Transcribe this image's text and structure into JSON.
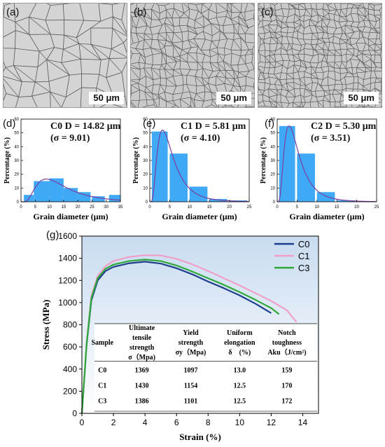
{
  "panels": {
    "micrographs": [
      {
        "label": "(a)",
        "scale": "50 μm"
      },
      {
        "label": "(b)",
        "scale": "50 μm"
      },
      {
        "label": "(c)",
        "scale": "50 μm"
      }
    ]
  },
  "chart_data": [
    {
      "type": "bar",
      "panel": "(d)",
      "title_line1": "C0 D = 14.82 μm",
      "title_line2": "(σ = 9.01)",
      "xlabel": "Grain diameter (μm)",
      "ylabel": "Percentage (%)",
      "xlim": [
        0,
        35
      ],
      "ylim": [
        0,
        60
      ],
      "xticks": [
        "0",
        "5",
        "10",
        "15",
        "20",
        "25",
        "30",
        "35"
      ],
      "yticks": [
        "0",
        "10",
        "20",
        "30",
        "40",
        "50",
        "60"
      ],
      "bin_edges": [
        [
          1,
          4.5
        ],
        [
          4.5,
          10
        ],
        [
          10,
          15
        ],
        [
          15,
          20
        ],
        [
          20,
          24.5
        ],
        [
          25,
          29.5
        ],
        [
          31,
          35
        ]
      ],
      "values": [
        5,
        15,
        17,
        10,
        7,
        4,
        5
      ],
      "fit_peak": 16.5,
      "fit_peak_x": 9,
      "bar_color": "#3fa9f5",
      "fit_color": "#7b3fa0"
    },
    {
      "type": "bar",
      "panel": "(e)",
      "title_line1": "C1 D = 5.81 μm",
      "title_line2": "(σ = 4.10)",
      "xlabel": "Grain diameter (μm)",
      "ylabel": "Percentage (%)",
      "xlim": [
        0,
        25
      ],
      "ylim": [
        0,
        60
      ],
      "xticks": [
        "0",
        "5",
        "10",
        "15",
        "20",
        "25"
      ],
      "yticks": [
        "0",
        "10",
        "20",
        "30",
        "40",
        "50",
        "60"
      ],
      "bin_edges": [
        [
          0.5,
          4.5
        ],
        [
          5,
          9.5
        ],
        [
          10,
          14.5
        ],
        [
          15,
          19.5
        ],
        [
          20,
          24.5
        ]
      ],
      "values": [
        51,
        35,
        11,
        2,
        1
      ],
      "fit_peak": 52,
      "fit_peak_x": 3,
      "bar_color": "#3fa9f5",
      "fit_color": "#7b3fa0"
    },
    {
      "type": "bar",
      "panel": "(f)",
      "title_line1": "C2 D = 5.30 μm",
      "title_line2": "(σ = 3.51)",
      "xlabel": "Grain diameter (μm)",
      "ylabel": "Percentage (%)",
      "xlim": [
        0,
        25
      ],
      "ylim": [
        0,
        60
      ],
      "xticks": [
        "0",
        "5",
        "10",
        "15",
        "20",
        "25"
      ],
      "yticks": [
        "0",
        "10",
        "20",
        "30",
        "40",
        "50",
        "60"
      ],
      "bin_edges": [
        [
          0.5,
          4.5
        ],
        [
          5,
          9.5
        ],
        [
          10,
          14.5
        ],
        [
          15,
          19.5
        ],
        [
          20,
          24.5
        ]
      ],
      "values": [
        55,
        35,
        7,
        1,
        0
      ],
      "fit_peak": 55,
      "fit_peak_x": 2.8,
      "bar_color": "#3fa9f5",
      "fit_color": "#7b3fa0"
    },
    {
      "type": "line",
      "panel": "(g)",
      "xlabel": "Strain  (%)",
      "ylabel": "Stress (MPa)",
      "xlim": [
        0,
        15
      ],
      "ylim": [
        0,
        1600
      ],
      "xticks": [
        "0",
        "2",
        "4",
        "6",
        "8",
        "10",
        "12",
        "14"
      ],
      "yticks": [
        "0",
        "200",
        "400",
        "600",
        "800",
        "1000",
        "1200",
        "1400",
        "1600"
      ],
      "legend_position": "top-right",
      "series": [
        {
          "name": "C0",
          "color": "#1f3f8f",
          "points": [
            [
              0,
              0
            ],
            [
              0.3,
              620
            ],
            [
              0.6,
              1020
            ],
            [
              1,
              1200
            ],
            [
              1.5,
              1285
            ],
            [
              2,
              1322
            ],
            [
              3,
              1355
            ],
            [
              4,
              1369
            ],
            [
              5,
              1352
            ],
            [
              6,
              1310
            ],
            [
              7,
              1255
            ],
            [
              8,
              1190
            ],
            [
              9,
              1130
            ],
            [
              10,
              1065
            ],
            [
              11,
              990
            ],
            [
              12,
              905
            ]
          ]
        },
        {
          "name": "C1",
          "color": "#f0a0c8",
          "points": [
            [
              0,
              0
            ],
            [
              0.3,
              640
            ],
            [
              0.6,
              1060
            ],
            [
              1,
              1240
            ],
            [
              1.5,
              1330
            ],
            [
              2,
              1375
            ],
            [
              3,
              1412
            ],
            [
              4,
              1428
            ],
            [
              5,
              1425
            ],
            [
              6,
              1395
            ],
            [
              7,
              1345
            ],
            [
              8,
              1285
            ],
            [
              9,
              1220
            ],
            [
              10,
              1155
            ],
            [
              11,
              1085
            ],
            [
              12,
              1015
            ],
            [
              13,
              930
            ],
            [
              13.6,
              825
            ]
          ]
        },
        {
          "name": "C3",
          "color": "#2fa83a",
          "points": [
            [
              0,
              0
            ],
            [
              0.3,
              630
            ],
            [
              0.6,
              1040
            ],
            [
              1,
              1220
            ],
            [
              1.5,
              1305
            ],
            [
              2,
              1343
            ],
            [
              3,
              1375
            ],
            [
              4,
              1388
            ],
            [
              5,
              1375
            ],
            [
              6,
              1335
            ],
            [
              7,
              1280
            ],
            [
              8,
              1220
            ],
            [
              9,
              1160
            ],
            [
              10,
              1095
            ],
            [
              11,
              1025
            ],
            [
              12,
              950
            ],
            [
              12.5,
              895
            ]
          ]
        }
      ],
      "table": {
        "headers": [
          [
            "Sample"
          ],
          [
            "Ultimate",
            "tensile",
            "strength",
            "σ（Mpa)"
          ],
          [
            "Yield",
            "strength",
            "σy（Mpa)"
          ],
          [
            "Uniform",
            "elongation",
            "δ　(%)"
          ],
          [
            "Notch",
            "toughness",
            "Aku（J/cm²)"
          ]
        ],
        "rows": [
          [
            "C0",
            "1369",
            "1097",
            "13.0",
            "159"
          ],
          [
            "C1",
            "1430",
            "1154",
            "12.5",
            "170"
          ],
          [
            "C3",
            "1386",
            "1101",
            "12.5",
            "172"
          ]
        ]
      }
    }
  ]
}
